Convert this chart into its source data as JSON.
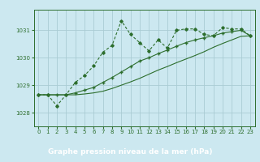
{
  "title": "Graphe pression niveau de la mer (hPa)",
  "bg_color": "#cce8f0",
  "plot_bg_color": "#cce8f0",
  "label_bg_color": "#2d6e2d",
  "label_text_color": "#ffffff",
  "line_color": "#2d6e2d",
  "grid_color": "#aaccd4",
  "xlim": [
    -0.5,
    23.5
  ],
  "ylim": [
    1027.5,
    1031.75
  ],
  "yticks": [
    1028,
    1029,
    1030,
    1031
  ],
  "xticks": [
    0,
    1,
    2,
    3,
    4,
    5,
    6,
    7,
    8,
    9,
    10,
    11,
    12,
    13,
    14,
    15,
    16,
    17,
    18,
    19,
    20,
    21,
    22,
    23
  ],
  "series1_x": [
    0,
    1,
    2,
    3,
    4,
    5,
    6,
    7,
    8,
    9,
    10,
    11,
    12,
    13,
    14,
    15,
    16,
    17,
    18,
    19,
    20,
    21,
    22,
    23
  ],
  "series1_y": [
    1028.65,
    1028.65,
    1028.25,
    1028.65,
    1029.1,
    1029.35,
    1029.7,
    1030.2,
    1030.45,
    1031.35,
    1030.85,
    1030.55,
    1030.25,
    1030.65,
    1030.35,
    1031.0,
    1031.05,
    1031.05,
    1030.85,
    1030.8,
    1031.1,
    1031.05,
    1031.05,
    1030.8
  ],
  "series2_x": [
    0,
    1,
    2,
    3,
    4,
    5,
    6,
    7,
    8,
    9,
    10,
    11,
    12,
    13,
    14,
    15,
    16,
    17,
    18,
    19,
    20,
    21,
    22,
    23
  ],
  "series2_y": [
    1028.65,
    1028.65,
    1028.65,
    1028.65,
    1028.72,
    1028.82,
    1028.92,
    1029.1,
    1029.28,
    1029.48,
    1029.68,
    1029.88,
    1030.0,
    1030.15,
    1030.28,
    1030.42,
    1030.55,
    1030.65,
    1030.73,
    1030.8,
    1030.9,
    1030.95,
    1031.0,
    1030.8
  ],
  "series3_x": [
    0,
    1,
    2,
    3,
    4,
    5,
    6,
    7,
    8,
    9,
    10,
    11,
    12,
    13,
    14,
    15,
    16,
    17,
    18,
    19,
    20,
    21,
    22,
    23
  ],
  "series3_y": [
    1028.65,
    1028.65,
    1028.65,
    1028.65,
    1028.65,
    1028.68,
    1028.72,
    1028.78,
    1028.88,
    1029.0,
    1029.12,
    1029.25,
    1029.4,
    1029.55,
    1029.68,
    1029.82,
    1029.95,
    1030.08,
    1030.22,
    1030.38,
    1030.52,
    1030.65,
    1030.78,
    1030.8
  ]
}
